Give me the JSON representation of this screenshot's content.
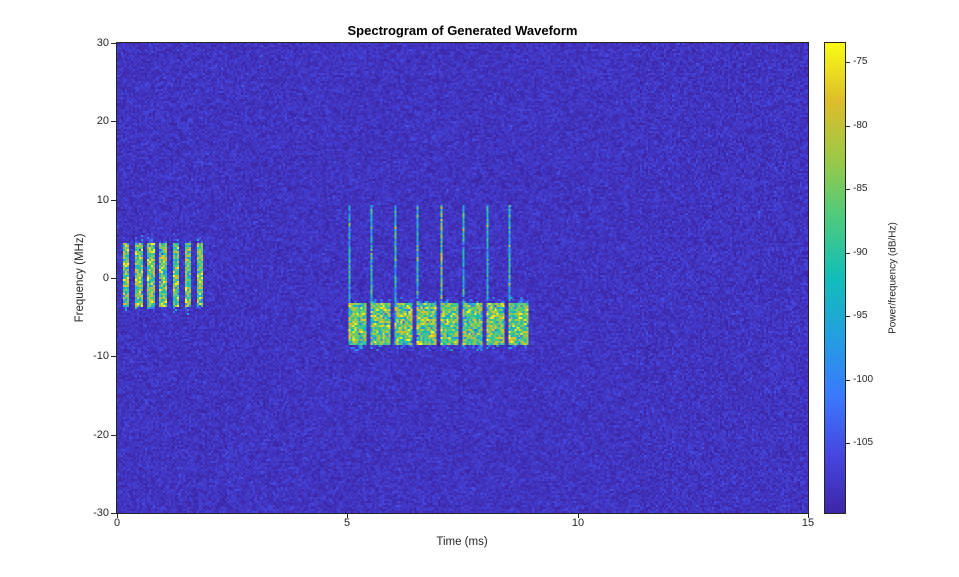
{
  "chart_data": {
    "type": "heatmap",
    "subtype": "spectrogram",
    "title": "Spectrogram of Generated Waveform",
    "xlabel": "Time (ms)",
    "ylabel": "Frequency (MHz)",
    "xlim": [
      0,
      15
    ],
    "ylim": [
      -30,
      30
    ],
    "x_ticks": [
      0,
      5,
      10,
      15
    ],
    "y_ticks": [
      30,
      20,
      10,
      0,
      -10,
      -20,
      -30
    ],
    "grid": false,
    "legend": false,
    "colorbar": {
      "label": "Power/frequency (dB/Hz)",
      "ticks": [
        -75,
        -80,
        -85,
        -90,
        -95,
        -100,
        -105
      ],
      "range_db": [
        -110.5,
        -73.5
      ]
    },
    "colormap": {
      "name": "parula",
      "stops": [
        "#3e26a8",
        "#4547e0",
        "#3a7afd",
        "#229fe1",
        "#12beb9",
        "#4acb7f",
        "#9ac947",
        "#dcbd29",
        "#f9fb15"
      ]
    },
    "background_db": {
      "mean": -108.5,
      "std": 1.3
    },
    "signals": [
      {
        "name": "pulsed-narrowband-burst-train",
        "t_start_ms": 0.13,
        "period_ms": 0.267,
        "count": 7,
        "burst_width_ms": 0.15,
        "freq_low_mhz": -3.6,
        "freq_high_mhz": 4.5,
        "power_db": {
          "mean": -86,
          "std": 7
        },
        "edge_fuzz_mhz": 1.2
      },
      {
        "name": "block-train-with-spikes",
        "t_start_ms": 5.01,
        "period_ms": 0.5,
        "count": 8,
        "block_width_ms": 0.42,
        "freq_low_mhz": -8.6,
        "freq_high_mhz": -3.1,
        "power_db": {
          "mean": -86,
          "std": 7
        },
        "edge_fuzz_mhz": 0.8,
        "spike": {
          "width_ms": 0.05,
          "freq_high_mhz": 9.4,
          "power_db": {
            "mean": -93,
            "std": 5
          }
        },
        "spike_hot_index": 4,
        "spike_hot_boost_db": 5,
        "spike_hot_spot": {
          "freq_low_mhz": 2.2,
          "freq_high_mhz": 3.2,
          "power_db": {
            "mean": -78,
            "std": 2
          }
        }
      }
    ]
  }
}
